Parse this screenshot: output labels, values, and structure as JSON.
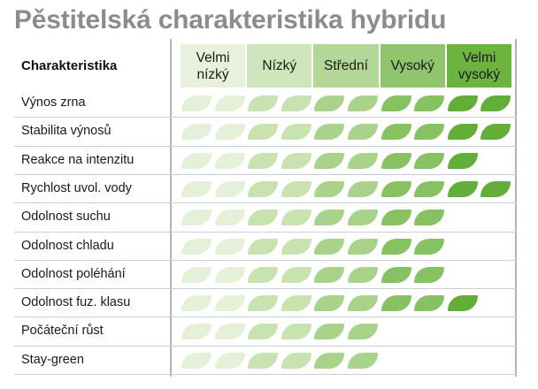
{
  "title": "Pěstitelská charakteristika hybridu",
  "header_label": "Charakteristika",
  "levels": [
    {
      "label": "Velmi\nnízký",
      "color": "#e7f1dc"
    },
    {
      "label": "Nízký",
      "color": "#cfe5bb"
    },
    {
      "label": "Střední",
      "color": "#b2d796"
    },
    {
      "label": "Vysoký",
      "color": "#8fc56c"
    },
    {
      "label": "Velmi\nvysoký",
      "color": "#6cb33f"
    }
  ],
  "leaf_colors": [
    "#e4f0d8",
    "#c8e2b0",
    "#a9d38a",
    "#86c261",
    "#62ae38"
  ],
  "rows": [
    {
      "label": "Výnos zrna",
      "leaves": 10
    },
    {
      "label": "Stabilita výnosů",
      "leaves": 10
    },
    {
      "label": "Reakce na intenzitu",
      "leaves": 9
    },
    {
      "label": "Rychlost uvol. vody",
      "leaves": 10
    },
    {
      "label": "Odolnost suchu",
      "leaves": 8
    },
    {
      "label": "Odolnost chladu",
      "leaves": 8
    },
    {
      "label": "Odolnost poléhání",
      "leaves": 8
    },
    {
      "label": "Odolnost fuz. klasu",
      "leaves": 9
    },
    {
      "label": "Počáteční růst",
      "leaves": 6
    },
    {
      "label": "Stay-green",
      "leaves": 6
    }
  ]
}
